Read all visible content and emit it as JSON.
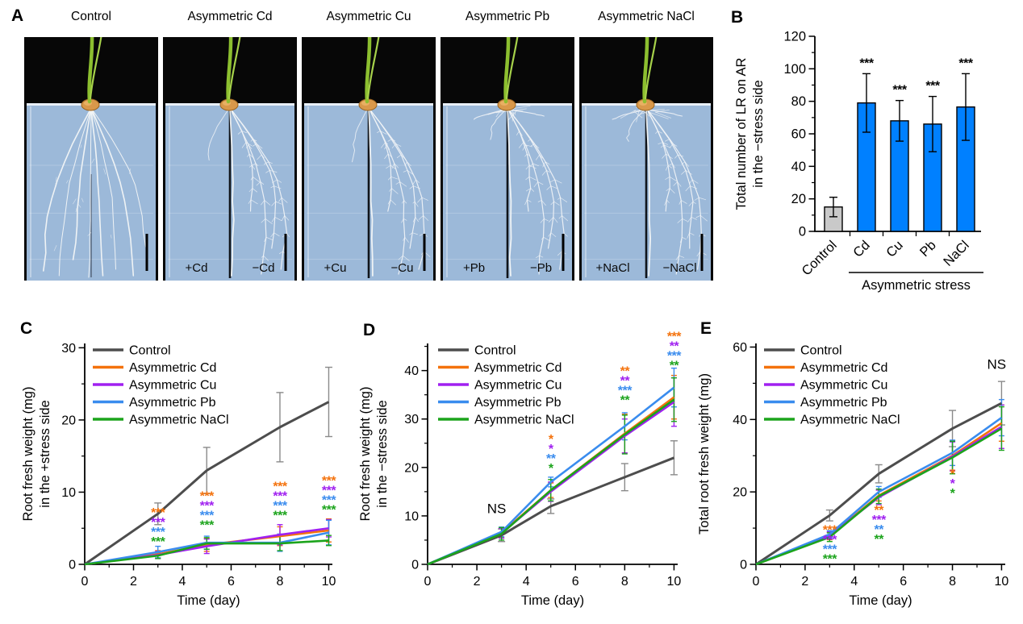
{
  "panels": {
    "a": {
      "letter": "A"
    },
    "b": {
      "letter": "B"
    },
    "c": {
      "letter": "C"
    },
    "d": {
      "letter": "D"
    },
    "e": {
      "letter": "E"
    }
  },
  "colors": {
    "control": "#4D4D4D",
    "cd": "#F4720C",
    "cu": "#A020F0",
    "pb": "#3A8CEE",
    "nacl": "#1CA41C",
    "bar_blue": "#0080FF",
    "bar_gray": "#C9C9C9",
    "error_gray": "#8A8A8A"
  },
  "panel_a": {
    "photos": [
      {
        "title": "Control",
        "left_label": "",
        "right_label": ""
      },
      {
        "title": "Asymmetric Cd",
        "left_label": "+Cd",
        "right_label": "−Cd"
      },
      {
        "title": "Asymmetric Cu",
        "left_label": "+Cu",
        "right_label": "−Cu"
      },
      {
        "title": "Asymmetric Pb",
        "left_label": "+Pb",
        "right_label": "−Pb"
      },
      {
        "title": "Asymmetric NaCl",
        "left_label": "+NaCl",
        "right_label": "−NaCl"
      }
    ]
  },
  "chart_data": [
    {
      "panel": "B",
      "type": "bar",
      "ylabel_lines": [
        "Total number of LR on AR",
        "in the −stress side"
      ],
      "categories": [
        "Control",
        "Cd",
        "Cu",
        "Pb",
        "NaCl"
      ],
      "values": [
        15,
        79,
        68,
        66,
        76.5
      ],
      "errors": [
        6,
        18,
        12.5,
        17,
        20.5
      ],
      "sig": [
        "",
        "***",
        "***",
        "***",
        "***"
      ],
      "bar_colors": [
        "gray",
        "blue",
        "blue",
        "blue",
        "blue"
      ],
      "group_label": "Asymmetric stress",
      "group_span": [
        1,
        4
      ],
      "ylim": [
        0,
        120
      ],
      "yticks": [
        0,
        20,
        40,
        60,
        80,
        100,
        120
      ],
      "grid": false
    },
    {
      "panel": "C",
      "type": "line",
      "xlabel": "Time (day)",
      "ylabel_lines": [
        "Root fresh weight (mg)",
        "in the +stress side"
      ],
      "x": [
        0,
        3,
        5,
        8,
        10
      ],
      "xticks": [
        0,
        2,
        4,
        6,
        8,
        10
      ],
      "xlim": [
        0,
        10.15
      ],
      "ylim": [
        0,
        30.6
      ],
      "yticks": [
        0,
        10,
        20,
        30
      ],
      "legend_position": "top-left",
      "grid": false,
      "series": [
        {
          "key": "control",
          "name": "Control",
          "values": [
            0,
            7,
            13,
            19,
            22.5
          ],
          "errors": [
            0,
            1.5,
            3.2,
            4.8,
            4.8
          ]
        },
        {
          "key": "cd",
          "name": "Asymmetric Cd",
          "values": [
            0,
            1.4,
            2.7,
            3.9,
            4.7
          ],
          "errors": [
            0,
            0.5,
            0.9,
            1.3,
            1.6
          ]
        },
        {
          "key": "cu",
          "name": "Asymmetric Cu",
          "values": [
            0,
            1.3,
            2.5,
            4.1,
            5.0
          ],
          "errors": [
            0,
            0.5,
            1.0,
            1.4,
            1.2
          ]
        },
        {
          "key": "pb",
          "name": "Asymmetric Pb",
          "values": [
            0,
            1.7,
            3.0,
            3.0,
            4.4
          ],
          "errors": [
            0,
            0.8,
            0.9,
            1.2,
            1.7
          ]
        },
        {
          "key": "nacl",
          "name": "Asymmetric NaCl",
          "values": [
            0,
            1.2,
            2.9,
            2.9,
            3.3
          ],
          "errors": [
            0,
            0.4,
            0.8,
            1.0,
            0.7
          ]
        }
      ],
      "sig": [
        {
          "x": 3,
          "y_top": 6.6,
          "rows": [
            [
              "cd",
              "***"
            ],
            [
              "cu",
              "***"
            ],
            [
              "pb",
              "***"
            ],
            [
              "nacl",
              "***"
            ]
          ]
        },
        {
          "x": 5,
          "y_top": 8.9,
          "rows": [
            [
              "cd",
              "***"
            ],
            [
              "cu",
              "***"
            ],
            [
              "pb",
              "***"
            ],
            [
              "nacl",
              "***"
            ]
          ]
        },
        {
          "x": 8,
          "y_top": 10.2,
          "rows": [
            [
              "cd",
              "***"
            ],
            [
              "cu",
              "***"
            ],
            [
              "pb",
              "***"
            ],
            [
              "nacl",
              "***"
            ]
          ]
        },
        {
          "x": 10,
          "y_top": 11.0,
          "rows": [
            [
              "cd",
              "***"
            ],
            [
              "cu",
              "***"
            ],
            [
              "pb",
              "***"
            ],
            [
              "nacl",
              "***"
            ]
          ]
        }
      ],
      "notes": []
    },
    {
      "panel": "D",
      "type": "line",
      "xlabel": "Time (day)",
      "ylabel_lines": [
        "Root fresh weight (mg)",
        "in the −stress side"
      ],
      "x": [
        0,
        3,
        5,
        8,
        10
      ],
      "xticks": [
        0,
        2,
        4,
        6,
        8,
        10
      ],
      "xlim": [
        0,
        10.15
      ],
      "ylim": [
        0,
        45.6
      ],
      "yticks": [
        0,
        10,
        20,
        30,
        40
      ],
      "legend_position": "top-left",
      "grid": false,
      "series": [
        {
          "key": "control",
          "name": "Control",
          "values": [
            0,
            6,
            12,
            18,
            22
          ],
          "errors": [
            0,
            1.3,
            1.5,
            2.8,
            3.5
          ]
        },
        {
          "key": "cd",
          "name": "Asymmetric Cd",
          "values": [
            0,
            6.5,
            15.3,
            27,
            34.5
          ],
          "errors": [
            0,
            1.0,
            1.5,
            4.0,
            4.5
          ]
        },
        {
          "key": "cu",
          "name": "Asymmetric Cu",
          "values": [
            0,
            6.4,
            15.0,
            26.5,
            33.5
          ],
          "errors": [
            0,
            1.0,
            2.0,
            3.5,
            5.0
          ]
        },
        {
          "key": "pb",
          "name": "Asymmetric Pb",
          "values": [
            0,
            6.7,
            17.0,
            28.5,
            36.5
          ],
          "errors": [
            0,
            1.0,
            1.0,
            2.8,
            4.0
          ]
        },
        {
          "key": "nacl",
          "name": "Asymmetric NaCl",
          "values": [
            0,
            6.3,
            15.3,
            26.8,
            34.0
          ],
          "errors": [
            0,
            1.3,
            2.2,
            4.0,
            4.5
          ]
        }
      ],
      "sig": [
        {
          "x": 5,
          "y_top": 25.0,
          "rows": [
            [
              "cd",
              "*"
            ],
            [
              "cu",
              "*"
            ],
            [
              "pb",
              "**"
            ],
            [
              "nacl",
              "*"
            ]
          ]
        },
        {
          "x": 8,
          "y_top": 39.0,
          "rows": [
            [
              "cd",
              "**"
            ],
            [
              "cu",
              "**"
            ],
            [
              "pb",
              "***"
            ],
            [
              "nacl",
              "**"
            ]
          ]
        },
        {
          "x": 10,
          "y_top": 46.2,
          "rows": [
            [
              "cd",
              "***"
            ],
            [
              "cu",
              "**"
            ],
            [
              "pb",
              "***"
            ],
            [
              "nacl",
              "**"
            ]
          ]
        }
      ],
      "notes": [
        {
          "x": 2.8,
          "y": 10.6,
          "text": "NS"
        }
      ]
    },
    {
      "panel": "E",
      "type": "line",
      "xlabel": "Time (day)",
      "ylabel_lines": [
        "Total root fresh weight (mg)"
      ],
      "x": [
        0,
        3,
        5,
        8,
        10
      ],
      "xticks": [
        0,
        2,
        4,
        6,
        8,
        10
      ],
      "xlim": [
        0,
        10.15
      ],
      "ylim": [
        0,
        61
      ],
      "yticks": [
        0,
        20,
        40,
        60
      ],
      "legend_position": "top-left",
      "grid": false,
      "series": [
        {
          "key": "control",
          "name": "Control",
          "values": [
            0,
            13.5,
            25,
            37.5,
            44.5
          ],
          "errors": [
            0,
            1.5,
            2.5,
            5.0,
            6.0
          ]
        },
        {
          "key": "cd",
          "name": "Asymmetric Cd",
          "values": [
            0,
            7.8,
            19.0,
            30.0,
            39.0
          ],
          "errors": [
            0,
            1.0,
            1.5,
            4.0,
            5.0
          ]
        },
        {
          "key": "cu",
          "name": "Asymmetric Cu",
          "values": [
            0,
            8.0,
            18.5,
            29.8,
            38.0
          ],
          "errors": [
            0,
            1.0,
            2.0,
            4.0,
            6.0
          ]
        },
        {
          "key": "pb",
          "name": "Asymmetric Pb",
          "values": [
            0,
            8.3,
            20.0,
            30.8,
            40.5
          ],
          "errors": [
            0,
            1.0,
            1.5,
            3.5,
            5.0
          ]
        },
        {
          "key": "nacl",
          "name": "Asymmetric NaCl",
          "values": [
            0,
            7.5,
            18.8,
            29.5,
            37.5
          ],
          "errors": [
            0,
            1.2,
            2.0,
            4.5,
            6.0
          ]
        }
      ],
      "sig": [
        {
          "x": 3,
          "y_top": 8.4,
          "rows": [
            [
              "cd",
              "***"
            ],
            [
              "cu",
              "***"
            ],
            [
              "pb",
              "***"
            ],
            [
              "nacl",
              "***"
            ]
          ]
        },
        {
          "x": 5,
          "y_top": 13.8,
          "rows": [
            [
              "cd",
              "**"
            ],
            [
              "cu",
              "***"
            ],
            [
              "pb",
              "**"
            ],
            [
              "nacl",
              "**"
            ]
          ]
        },
        {
          "x": 8,
          "y_top": 23.8,
          "rows": [
            [
              "cd",
              "*"
            ],
            [
              "cu",
              "*"
            ],
            [
              "nacl",
              "*"
            ]
          ]
        }
      ],
      "notes": [
        {
          "x": 9.8,
          "y": 54,
          "text": "NS"
        }
      ]
    }
  ]
}
